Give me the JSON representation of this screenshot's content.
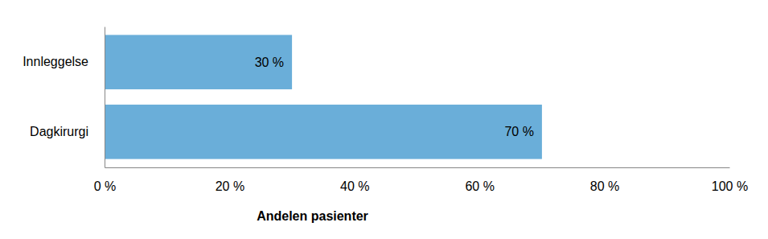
{
  "chart_data": {
    "type": "bar",
    "orientation": "horizontal",
    "categories": [
      "Innleggelse",
      "Dagkirurgi"
    ],
    "values": [
      30,
      70
    ],
    "value_labels": [
      "30 %",
      "70 %"
    ],
    "data_labels": true,
    "color": "#6aaed9",
    "x_label": "Andelen pasienter",
    "xlim": [
      0,
      100
    ],
    "xticks": [
      {
        "value": 0,
        "label": "0 %"
      },
      {
        "value": 20,
        "label": "20 %"
      },
      {
        "value": 40,
        "label": "40 %"
      },
      {
        "value": 60,
        "label": "60 %"
      },
      {
        "value": 80,
        "label": "80 %"
      },
      {
        "value": 100,
        "label": "100 %"
      }
    ],
    "grid": false
  }
}
